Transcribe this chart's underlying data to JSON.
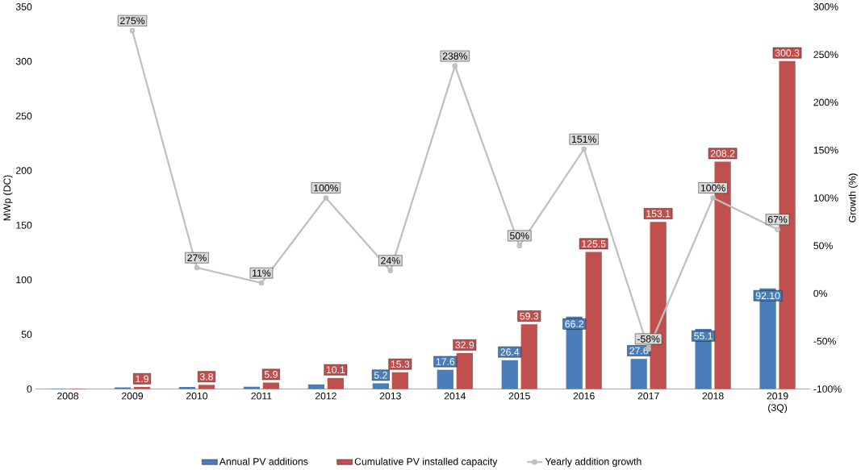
{
  "chart_data": {
    "type": "bar",
    "ylabel": "MWp (DC)",
    "y2label": "Growth (%)",
    "categories": [
      "2008",
      "2009",
      "2010",
      "2011",
      "2012",
      "2013",
      "2014",
      "2015",
      "2016",
      "2017",
      "2018",
      "2019 (3Q)"
    ],
    "series": [
      {
        "name": "Annual PV additions",
        "color": "#4a7ebb",
        "values": [
          0.4,
          1.5,
          1.9,
          2.1,
          4.2,
          5.2,
          17.6,
          26.4,
          66.2,
          27.6,
          55.1,
          92.1
        ],
        "value_labels": [
          null,
          null,
          null,
          null,
          null,
          "5.2",
          "17.6",
          "26.4",
          "66.2",
          "27.6",
          "55.1",
          "92.10"
        ]
      },
      {
        "name": "Cumulative PV installed capacity",
        "color": "#c0504d",
        "values": [
          0.4,
          1.9,
          3.8,
          5.9,
          10.1,
          15.3,
          32.9,
          59.3,
          125.5,
          153.1,
          208.2,
          300.3
        ],
        "value_labels": [
          null,
          "1.9",
          "3.8",
          "5.9",
          "10.1",
          "15.3",
          "32.9",
          "59.3",
          "125.5",
          "153.1",
          "208.2",
          "300.3"
        ]
      },
      {
        "name": "Yearly addition growth",
        "type": "line",
        "axis": "y2",
        "color": "#bfbfbf",
        "marker": "circle",
        "values": [
          null,
          275,
          27,
          11,
          100,
          24,
          238,
          50,
          151,
          -58,
          100,
          67
        ],
        "value_labels": [
          null,
          "275%",
          "27%",
          "11%",
          "100%",
          "24%",
          "238%",
          "50%",
          "151%",
          "-58%",
          "100%",
          "67%"
        ]
      }
    ],
    "ylim": [
      0,
      350
    ],
    "yticks": [
      0,
      50,
      100,
      150,
      200,
      250,
      300,
      350
    ],
    "y2lim": [
      -100,
      300
    ],
    "y2ticks": [
      {
        "value": -100,
        "label": "-100%"
      },
      {
        "value": -50,
        "label": "-50%"
      },
      {
        "value": 0,
        "label": "0%"
      },
      {
        "value": 50,
        "label": "50%"
      },
      {
        "value": 100,
        "label": "100%"
      },
      {
        "value": 150,
        "label": "150%"
      },
      {
        "value": 200,
        "label": "200%"
      },
      {
        "value": 250,
        "label": "250%"
      },
      {
        "value": 300,
        "label": "300%"
      }
    ],
    "grid": false,
    "legend": "bottom"
  }
}
